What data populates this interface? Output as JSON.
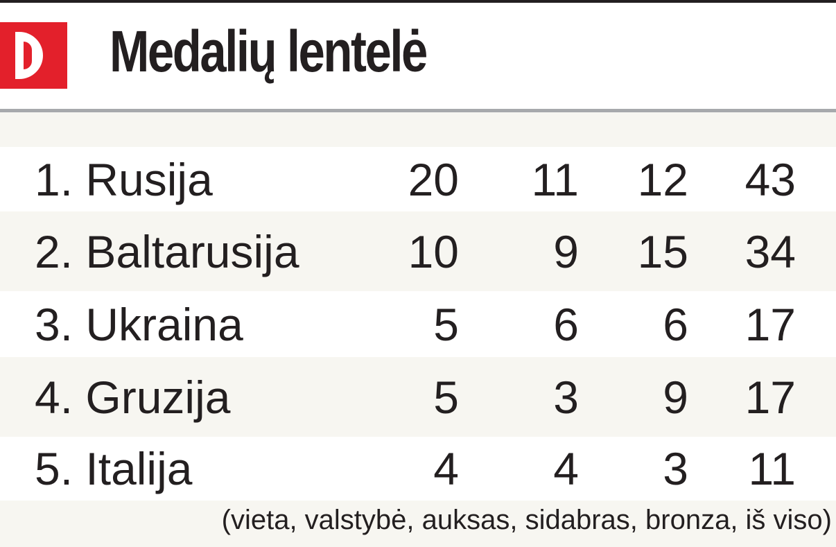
{
  "header": {
    "logo": "D",
    "title": "Medalių lentelė"
  },
  "table": {
    "rows": [
      [
        "1.",
        "Rusija",
        20,
        11,
        12,
        43
      ],
      [
        "2.",
        "Baltarusija",
        10,
        9,
        15,
        34
      ],
      [
        "3.",
        "Ukraina",
        5,
        6,
        6,
        17
      ],
      [
        "4.",
        "Gruzija",
        5,
        3,
        9,
        17
      ],
      [
        "5.",
        "Italija",
        4,
        4,
        3,
        11
      ]
    ]
  },
  "note": "(vieta, valstybė, auksas, sidabras, bronza, iš viso)"
}
